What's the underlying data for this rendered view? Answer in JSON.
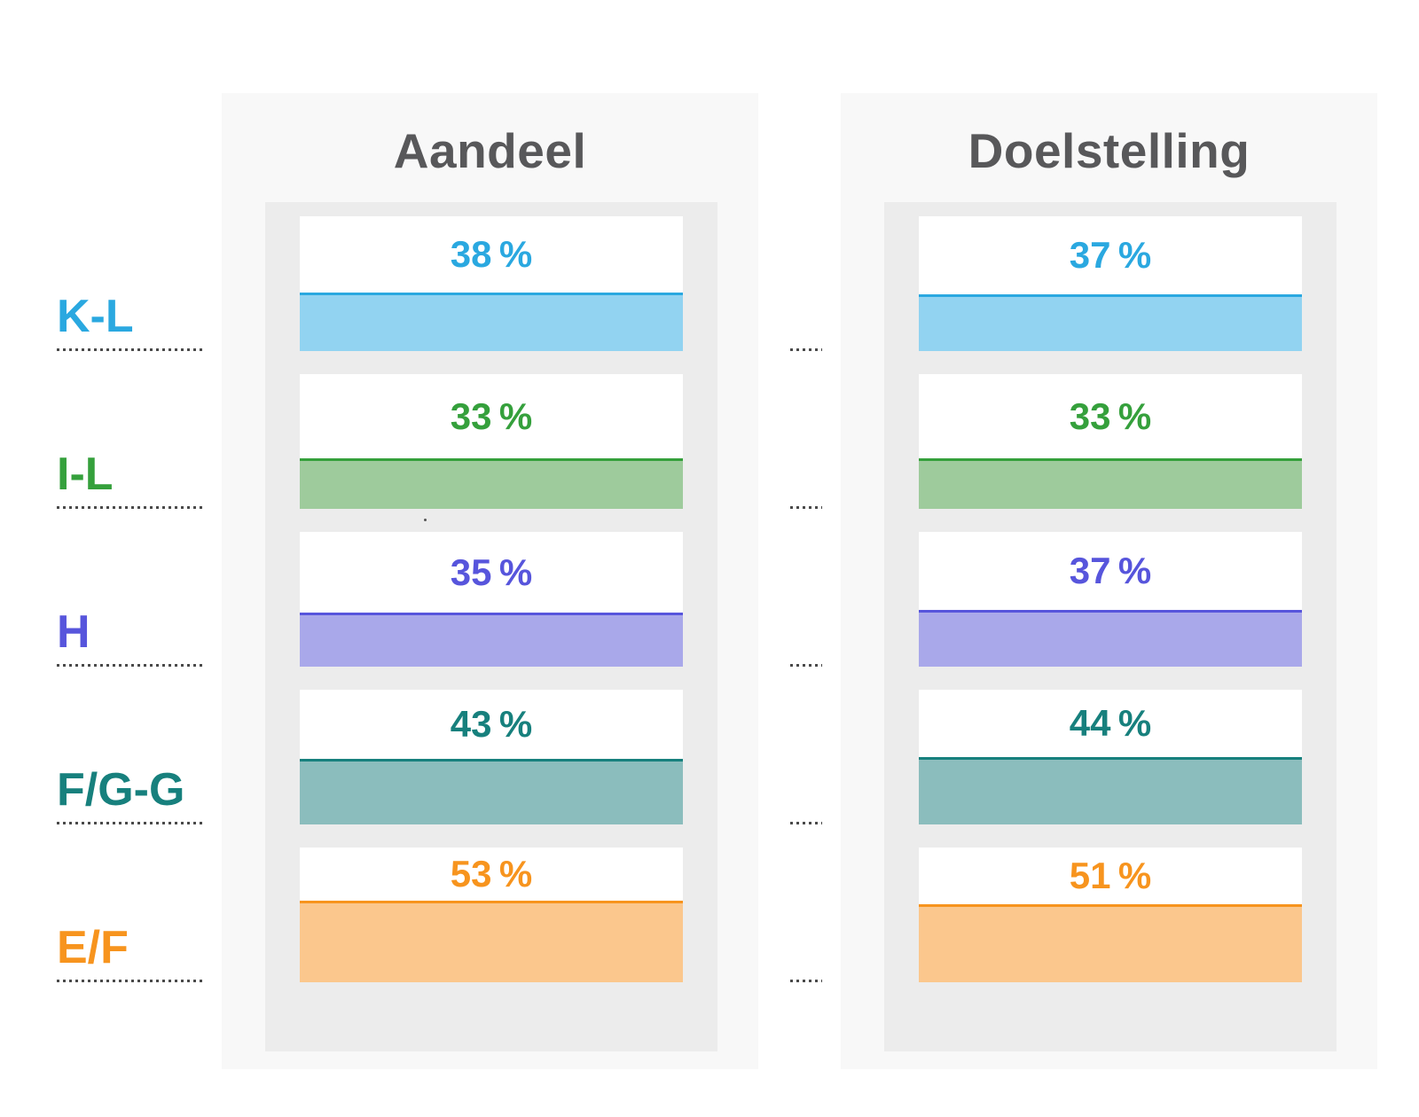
{
  "chart_data": {
    "type": "bar",
    "title": "",
    "categories": [
      "K-L",
      "I-L",
      "H",
      "F/G-G",
      "E/F"
    ],
    "series": [
      {
        "name": "Aandeel",
        "values": [
          38,
          33,
          35,
          43,
          53
        ]
      },
      {
        "name": "Doelstelling",
        "values": [
          37,
          33,
          37,
          44,
          51
        ]
      }
    ],
    "unit": "%",
    "orientation": "vertical-card-fill",
    "value_labels_shown": true,
    "legend_position": "column-headers",
    "grid": false
  },
  "rows": [
    {
      "key": "k-l",
      "label": "K-L",
      "accent": "#2aa8e0",
      "fill": "#92d3f1"
    },
    {
      "key": "i-l",
      "label": "I-L",
      "accent": "#35a03c",
      "fill": "#9ecb9c"
    },
    {
      "key": "h",
      "label": "H",
      "accent": "#5755dc",
      "fill": "#a9a8ea"
    },
    {
      "key": "f/g-g",
      "label": "F/G-G",
      "accent": "#17807d",
      "fill": "#8bbdbd"
    },
    {
      "key": "e/f",
      "label": "E/F",
      "accent": "#f7941e",
      "fill": "#fbc78d"
    }
  ],
  "columns": [
    {
      "id": "aandeel",
      "title": "Aandeel",
      "values": [
        {
          "value": 38,
          "display": "38 %"
        },
        {
          "value": 33,
          "display": "33 %"
        },
        {
          "value": 35,
          "display": "35 %"
        },
        {
          "value": 43,
          "display": "43 %"
        },
        {
          "value": 53,
          "display": "53 %"
        }
      ]
    },
    {
      "id": "doelstelling",
      "title": "Doelstelling",
      "values": [
        {
          "value": 37,
          "display": "37 %"
        },
        {
          "value": 33,
          "display": "33 %"
        },
        {
          "value": 37,
          "display": "37 %"
        },
        {
          "value": 44,
          "display": "44 %"
        },
        {
          "value": 51,
          "display": "51 %"
        }
      ]
    }
  ],
  "style": {
    "header_text_color": "#58585a",
    "outer_panel_color": "#f8f8f8",
    "inner_panel_color": "#ececec",
    "dotted_line_color": "#4a4a4a",
    "card_background": "#ffffff"
  }
}
